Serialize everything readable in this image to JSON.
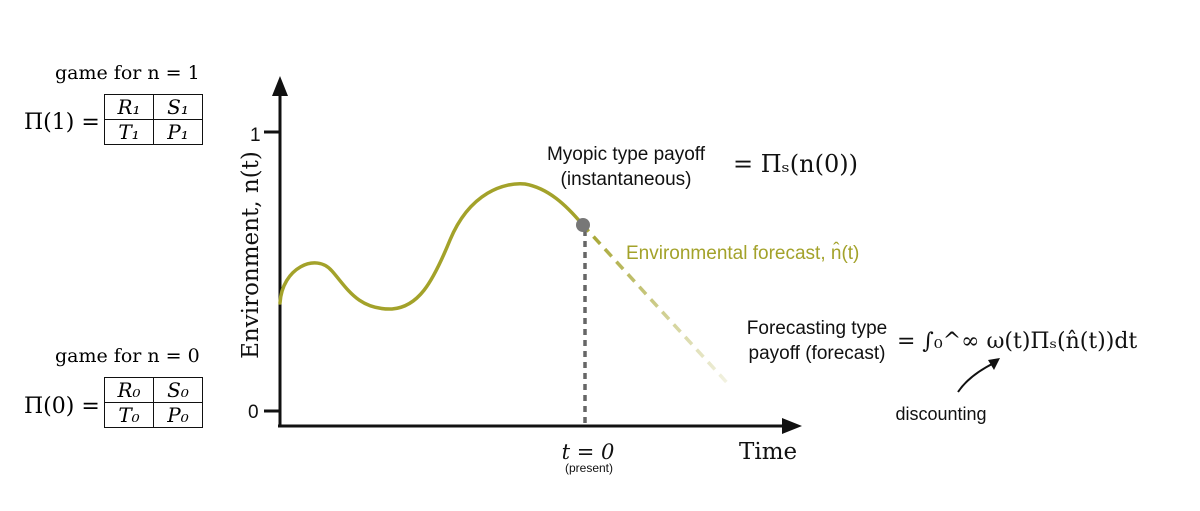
{
  "colors": {
    "curve": "#a3a22a",
    "forecast": "#a3a22a",
    "axis": "#111111",
    "marker": "#777777",
    "dashed_line": "#666666"
  },
  "game1": {
    "title": "game for n = 1",
    "label": "Π(1) =",
    "cells": [
      [
        "R₁",
        "S₁"
      ],
      [
        "T₁",
        "P₁"
      ]
    ]
  },
  "game0": {
    "title": "game for n = 0",
    "label": "Π(0) =",
    "cells": [
      [
        "R₀",
        "S₀"
      ],
      [
        "T₀",
        "P₀"
      ]
    ]
  },
  "axes": {
    "y_label": "Environment, n(t)",
    "x_label": "Time",
    "y_tick_top": "1",
    "y_tick_bottom": "0",
    "present_label": "t = 0",
    "present_sublabel": "(present)"
  },
  "annotations": {
    "myopic_line1": "Myopic type payoff",
    "myopic_line2": "(instantaneous)",
    "myopic_formula": "= Πₛ(n(0))",
    "forecast_label": "Environmental forecast, n̂(t)",
    "forecasting_line1": "Forecasting type",
    "forecasting_line2": "payoff (forecast)",
    "forecasting_formula": "= ∫₀^∞ ω(t)Πₛ(n̂(t))dt",
    "discounting": "discounting"
  }
}
